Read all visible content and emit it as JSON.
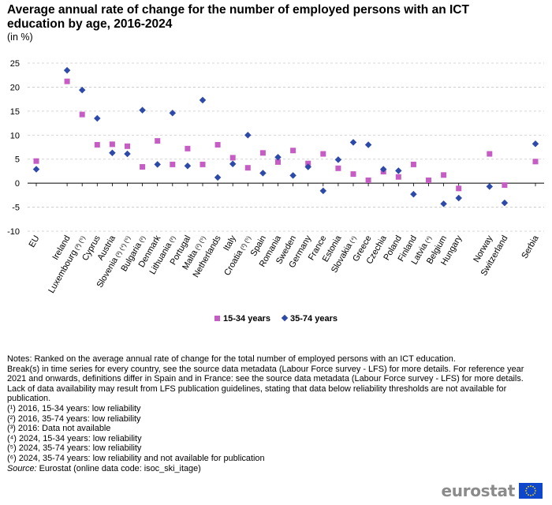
{
  "header": {
    "title": "Average annual rate of change for the number of employed persons with an ICT education by age, 2016-2024",
    "unit": "(in %)"
  },
  "chart_data": {
    "type": "scatter",
    "title": "Average annual rate of change for the number of employed persons with an ICT education by age, 2016-2024",
    "ylabel": "(in %)",
    "xlabel": "",
    "ylim": [
      -10,
      25
    ],
    "yticks": [
      25,
      20,
      15,
      10,
      5,
      0,
      -5,
      -10
    ],
    "grid": "horizontal-dashed",
    "legend_position": "bottom",
    "categories": [
      {
        "label": "EU",
        "sup": "",
        "gap_after": true
      },
      {
        "label": "Ireland",
        "sup": ""
      },
      {
        "label": "Luxembourg",
        "sup": "(³) (⁶)"
      },
      {
        "label": "Cyprus",
        "sup": ""
      },
      {
        "label": "Austria",
        "sup": ""
      },
      {
        "label": "Slovenia",
        "sup": "(³) (⁴) (⁶)"
      },
      {
        "label": "Bulgaria",
        "sup": "(²)"
      },
      {
        "label": "Denmark",
        "sup": ""
      },
      {
        "label": "Lithuania",
        "sup": "(²)"
      },
      {
        "label": "Portugal",
        "sup": ""
      },
      {
        "label": "Malta",
        "sup": "(²) (⁵)"
      },
      {
        "label": "Netherlands",
        "sup": ""
      },
      {
        "label": "Italy",
        "sup": ""
      },
      {
        "label": "Croatia",
        "sup": "(²) (⁵)"
      },
      {
        "label": "Spain",
        "sup": ""
      },
      {
        "label": "Romania",
        "sup": ""
      },
      {
        "label": "Sweden",
        "sup": ""
      },
      {
        "label": "Germany",
        "sup": ""
      },
      {
        "label": "France",
        "sup": ""
      },
      {
        "label": "Estonia",
        "sup": ""
      },
      {
        "label": "Slovakia",
        "sup": "(⁴)"
      },
      {
        "label": "Greece",
        "sup": ""
      },
      {
        "label": "Czechia",
        "sup": ""
      },
      {
        "label": "Poland",
        "sup": ""
      },
      {
        "label": "Finland",
        "sup": ""
      },
      {
        "label": "Latvia",
        "sup": "(⁴)"
      },
      {
        "label": "Belgium",
        "sup": ""
      },
      {
        "label": "Hungary",
        "sup": "",
        "gap_after": true
      },
      {
        "label": "Norway",
        "sup": ""
      },
      {
        "label": "Switzerland",
        "sup": "",
        "gap_after": true
      },
      {
        "label": "Serbia",
        "sup": ""
      }
    ],
    "series": [
      {
        "name": "15-34 years",
        "marker": "square",
        "color": "#c65dc5",
        "values": [
          4.6,
          21.2,
          14.3,
          8.0,
          8.1,
          7.7,
          3.4,
          8.8,
          3.9,
          7.2,
          3.9,
          8.0,
          5.3,
          3.2,
          6.3,
          4.4,
          6.8,
          4.1,
          6.1,
          3.1,
          1.9,
          0.6,
          2.4,
          1.3,
          3.9,
          0.6,
          1.7,
          -1.1,
          6.1,
          -0.4,
          4.5
        ]
      },
      {
        "name": "35-74 years",
        "marker": "diamond",
        "color": "#2d4aa8",
        "values": [
          2.9,
          23.5,
          19.4,
          13.5,
          6.3,
          6.1,
          15.2,
          3.9,
          14.6,
          3.6,
          17.3,
          1.2,
          4.0,
          10.0,
          2.1,
          5.4,
          1.6,
          3.4,
          -1.6,
          4.9,
          8.5,
          8.0,
          2.9,
          2.6,
          -2.3,
          null,
          -4.3,
          -3.1,
          -0.7,
          -4.1,
          8.2
        ]
      }
    ]
  },
  "notes": {
    "lines": [
      "Notes: Ranked on the average annual rate of change for the total number of employed persons with an ICT education.",
      "Break(s) in time series for every country, see the source data metadata (Labour Force survey - LFS) for more details.  For reference year 2021 and onwards, definitions differ in Spain and in France: see the source data metadata (Labour Force survey - LFS) for more details.",
      "Lack of data availability may result from LFS publication guidelines, stating that data below reliability thresholds are not available for publication.",
      "(¹) 2016, 15-34 years: low reliability",
      "(²) 2016, 35-74 years: low reliability",
      "(³) 2016: Data not available",
      "(⁴) 2024, 15-34 years: low reliability",
      "(⁵) 2024, 35-74 years: low reliability",
      "(⁶) 2024, 35-74 years: low reliability and not available for publication"
    ],
    "source_label": "Source:",
    "source_text": " Eurostat (online data code: isoc_ski_itage)"
  },
  "logo": {
    "text": "eurostat"
  },
  "colors": {
    "grid": "#c8c8c8",
    "axis": "#000000",
    "logo_flag": "#0e47cb",
    "logo_stars": "#ffdd00"
  }
}
